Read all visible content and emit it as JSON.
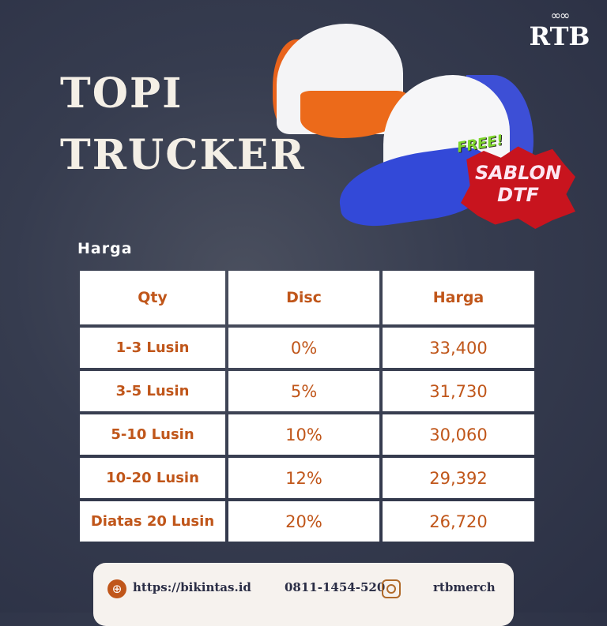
{
  "header": {
    "title_line1": "TOPI",
    "title_line2": "TRUCKER"
  },
  "logo": {
    "text": "RTB"
  },
  "promo": {
    "free": "FREE!",
    "line1": "SABLON",
    "line2": "DTF"
  },
  "pricing": {
    "label": "Harga",
    "columns": [
      "Qty",
      "Disc",
      "Harga"
    ],
    "rows": [
      {
        "qty": "1-3 Lusin",
        "disc": "0%",
        "price": "33,400"
      },
      {
        "qty": "3-5 Lusin",
        "disc": "5%",
        "price": "31,730"
      },
      {
        "qty": "5-10 Lusin",
        "disc": "10%",
        "price": "30,060"
      },
      {
        "qty": "10-20 Lusin",
        "disc": "12%",
        "price": "29,392"
      },
      {
        "qty": "Diatas 20 Lusin",
        "disc": "20%",
        "price": "26,720"
      }
    ]
  },
  "footer": {
    "website": "https://bikintas.id",
    "phone": "0811-1454-520",
    "instagram": "rtbmerch"
  },
  "colors": {
    "accent": "#c0561a",
    "background": "#363c4f",
    "promo_red": "#c8141e"
  }
}
